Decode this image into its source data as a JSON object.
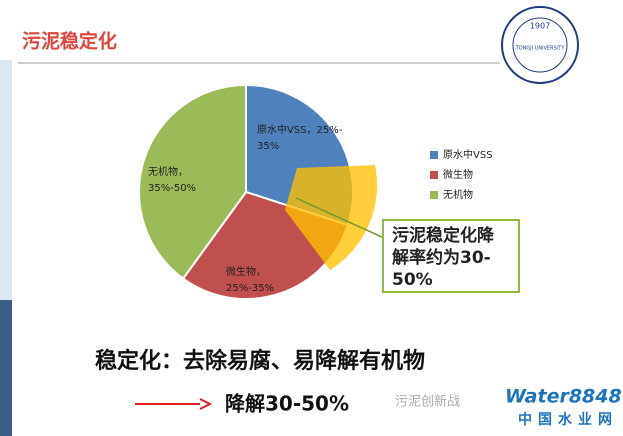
{
  "slide": {
    "title": "污泥稳定化",
    "logo_year": "1907",
    "logo_text": "TONGJI UNIVERSITY",
    "callout": [
      "污泥稳定化降",
      "解率约为30-",
      "50%"
    ],
    "bottom_line1": "稳定化：去除易腐、易降解有机物",
    "bottom_line2": "降解30-50%",
    "watermark": "污泥创新战",
    "site_brand": "Water8848",
    "site_name": "中国水业网"
  },
  "chart_data": {
    "type": "pie",
    "categories": [
      "原水中VSS",
      "微生物",
      "无机物"
    ],
    "values": [
      30,
      30,
      40
    ],
    "data_labels": [
      [
        "原水中VSS，25%-",
        "35%"
      ],
      [
        "微生物，",
        "25%-35%"
      ],
      [
        "无机物，",
        "35%-50%"
      ]
    ],
    "colors": [
      "#4f81bd",
      "#c0504d",
      "#9bbb59"
    ],
    "legend": "right"
  }
}
